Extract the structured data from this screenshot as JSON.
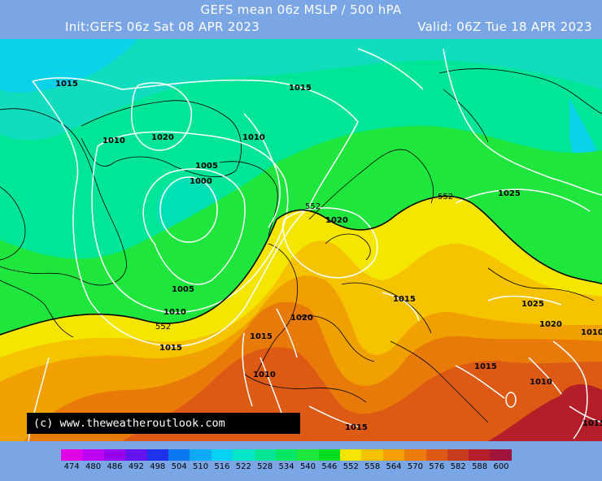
{
  "header": {
    "title": "GEFS mean 06z MSLP / 500 hPA",
    "init": "Init:GEFS 06z Sat 08 APR 2023",
    "valid": "Valid: 06Z Tue 18 APR 2023"
  },
  "credit": "(c)  www.theweatheroutlook.com",
  "isobar_labels": {
    "l1015_ne_atlantic": "1015",
    "l1020_greenland_sea": "1020",
    "l1010_greenland": "1010",
    "l1010_north_sea_arc": "1010",
    "l1005_inner": "1005",
    "l1000_low_centre": "1000",
    "l1015_arctic": "1015",
    "l1025_russia": "1025",
    "l1020_benelux": "1020",
    "l1005_atlantic": "1005",
    "l1010_atlantic": "1010",
    "l1015_azores": "1015",
    "l1015_spain": "1015",
    "l1020_med": "1020",
    "l1010_n_africa": "1010",
    "l1015_balkans": "1015",
    "l1025_turkey": "1025",
    "l1020_caspian": "1020",
    "l1010_east_edge": "1010",
    "l1015_middle_east": "1015",
    "l1010_arabia": "1010",
    "l1015_sahara": "1015",
    "l1015_far_se": "1015"
  },
  "contour_552_labels": {
    "west": "552",
    "central": "552",
    "east": "552"
  },
  "colour_scale": [
    {
      "value": "474",
      "color": "#e100e6"
    },
    {
      "value": "480",
      "color": "#be00f0"
    },
    {
      "value": "486",
      "color": "#9600f0"
    },
    {
      "value": "492",
      "color": "#6414f0"
    },
    {
      "value": "498",
      "color": "#1e32f0"
    },
    {
      "value": "504",
      "color": "#0a78f0"
    },
    {
      "value": "510",
      "color": "#0aaaf5"
    },
    {
      "value": "516",
      "color": "#00d2f0"
    },
    {
      "value": "522",
      "color": "#00e6c8"
    },
    {
      "value": "528",
      "color": "#00e696"
    },
    {
      "value": "534",
      "color": "#00e664"
    },
    {
      "value": "540",
      "color": "#1ee63c"
    },
    {
      "value": "546",
      "color": "#00dc1e"
    },
    {
      "value": "552",
      "color": "#f5e600"
    },
    {
      "value": "558",
      "color": "#f5c300"
    },
    {
      "value": "564",
      "color": "#f5a000"
    },
    {
      "value": "570",
      "color": "#ec7d0a"
    },
    {
      "value": "576",
      "color": "#dc5a14"
    },
    {
      "value": "582",
      "color": "#c83c1e"
    },
    {
      "value": "588",
      "color": "#b41e28"
    },
    {
      "value": "600",
      "color": "#a0143c"
    }
  ]
}
